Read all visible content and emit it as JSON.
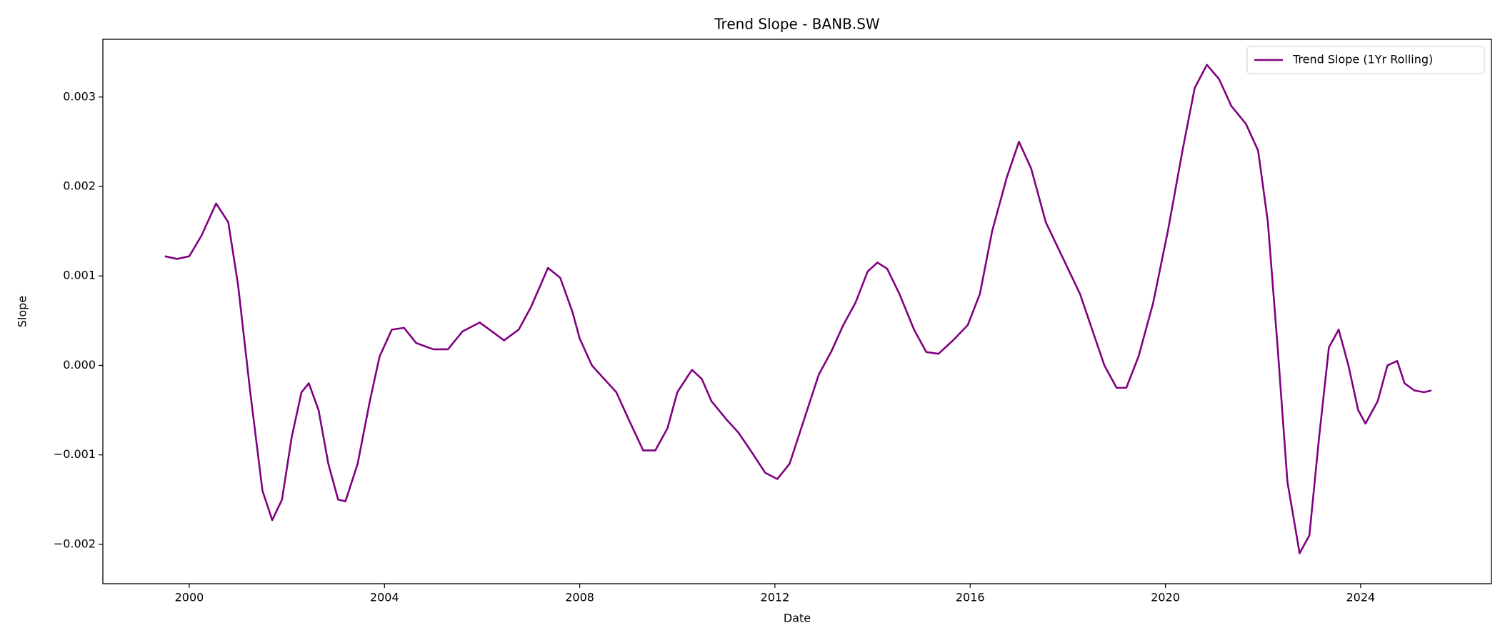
{
  "chart_data": {
    "type": "line",
    "title": "Trend Slope - BANB.SW",
    "x_label": "Date",
    "y_label": "Slope",
    "x": [
      1999.5,
      1999.75,
      2000.0,
      2000.25,
      2000.55,
      2000.8,
      2001.0,
      2001.25,
      2001.5,
      2001.7,
      2001.9,
      2002.1,
      2002.3,
      2002.45,
      2002.65,
      2002.85,
      2003.05,
      2003.2,
      2003.45,
      2003.7,
      2003.9,
      2004.15,
      2004.4,
      2004.65,
      2005.0,
      2005.3,
      2005.6,
      2005.95,
      2006.2,
      2006.45,
      2006.75,
      2007.0,
      2007.35,
      2007.6,
      2007.85,
      2008.0,
      2008.25,
      2008.5,
      2008.75,
      2009.0,
      2009.3,
      2009.55,
      2009.8,
      2010.0,
      2010.3,
      2010.5,
      2010.7,
      2011.0,
      2011.25,
      2011.5,
      2011.8,
      2012.05,
      2012.3,
      2012.6,
      2012.9,
      2013.15,
      2013.4,
      2013.65,
      2013.9,
      2014.1,
      2014.3,
      2014.55,
      2014.85,
      2015.1,
      2015.35,
      2015.65,
      2015.95,
      2016.2,
      2016.45,
      2016.75,
      2017.0,
      2017.25,
      2017.55,
      2017.9,
      2018.25,
      2018.5,
      2018.75,
      2019.0,
      2019.2,
      2019.45,
      2019.75,
      2020.05,
      2020.35,
      2020.6,
      2020.85,
      2021.1,
      2021.35,
      2021.65,
      2021.9,
      2022.1,
      2022.3,
      2022.5,
      2022.75,
      2022.95,
      2023.15,
      2023.35,
      2023.55,
      2023.75,
      2023.95,
      2024.1,
      2024.35,
      2024.55,
      2024.75,
      2024.9,
      2025.1,
      2025.3,
      2025.45
    ],
    "series": [
      {
        "name": "Trend Slope (1Yr Rolling)",
        "color": "#800080",
        "values": [
          0.00122,
          0.00119,
          0.00122,
          0.00145,
          0.00181,
          0.0016,
          0.0009,
          -0.0003,
          -0.0014,
          -0.00173,
          -0.0015,
          -0.0008,
          -0.0003,
          -0.0002,
          -0.0005,
          -0.0011,
          -0.0015,
          -0.00152,
          -0.0011,
          -0.0004,
          0.0001,
          0.0004,
          0.00042,
          0.00025,
          0.00018,
          0.00018,
          0.00038,
          0.00048,
          0.00038,
          0.00028,
          0.0004,
          0.00065,
          0.00109,
          0.00098,
          0.0006,
          0.0003,
          0.0,
          -0.00015,
          -0.0003,
          -0.0006,
          -0.00095,
          -0.00095,
          -0.0007,
          -0.0003,
          -5e-05,
          -0.00015,
          -0.0004,
          -0.0006,
          -0.00075,
          -0.00095,
          -0.0012,
          -0.00127,
          -0.0011,
          -0.0006,
          -0.0001,
          0.00015,
          0.00045,
          0.0007,
          0.00105,
          0.00115,
          0.00108,
          0.0008,
          0.0004,
          0.00015,
          0.00013,
          0.00028,
          0.00045,
          0.0008,
          0.0015,
          0.0021,
          0.0025,
          0.0022,
          0.0016,
          0.0012,
          0.0008,
          0.0004,
          0.0,
          -0.00025,
          -0.00025,
          0.0001,
          0.0007,
          0.0015,
          0.0024,
          0.0031,
          0.00336,
          0.0032,
          0.0029,
          0.0027,
          0.0024,
          0.0016,
          0.0002,
          -0.0013,
          -0.0021,
          -0.0019,
          -0.0008,
          0.0002,
          0.0004,
          0.0,
          -0.0005,
          -0.00065,
          -0.0004,
          0.0,
          5e-05,
          -0.0002,
          -0.00028,
          -0.0003,
          -0.00028
        ]
      }
    ],
    "xlim": [
      1998.23,
      2026.68
    ],
    "xticks": [
      2000,
      2004,
      2008,
      2012,
      2016,
      2020,
      2024
    ],
    "ylim": [
      -0.00244,
      0.003645
    ],
    "yticks": [
      {
        "value": -0.002,
        "label": "−0.002"
      },
      {
        "value": -0.001,
        "label": "−0.001"
      },
      {
        "value": 0,
        "label": "0.000"
      },
      0.001,
      0.002,
      0.003
    ],
    "legend": "upper right"
  }
}
